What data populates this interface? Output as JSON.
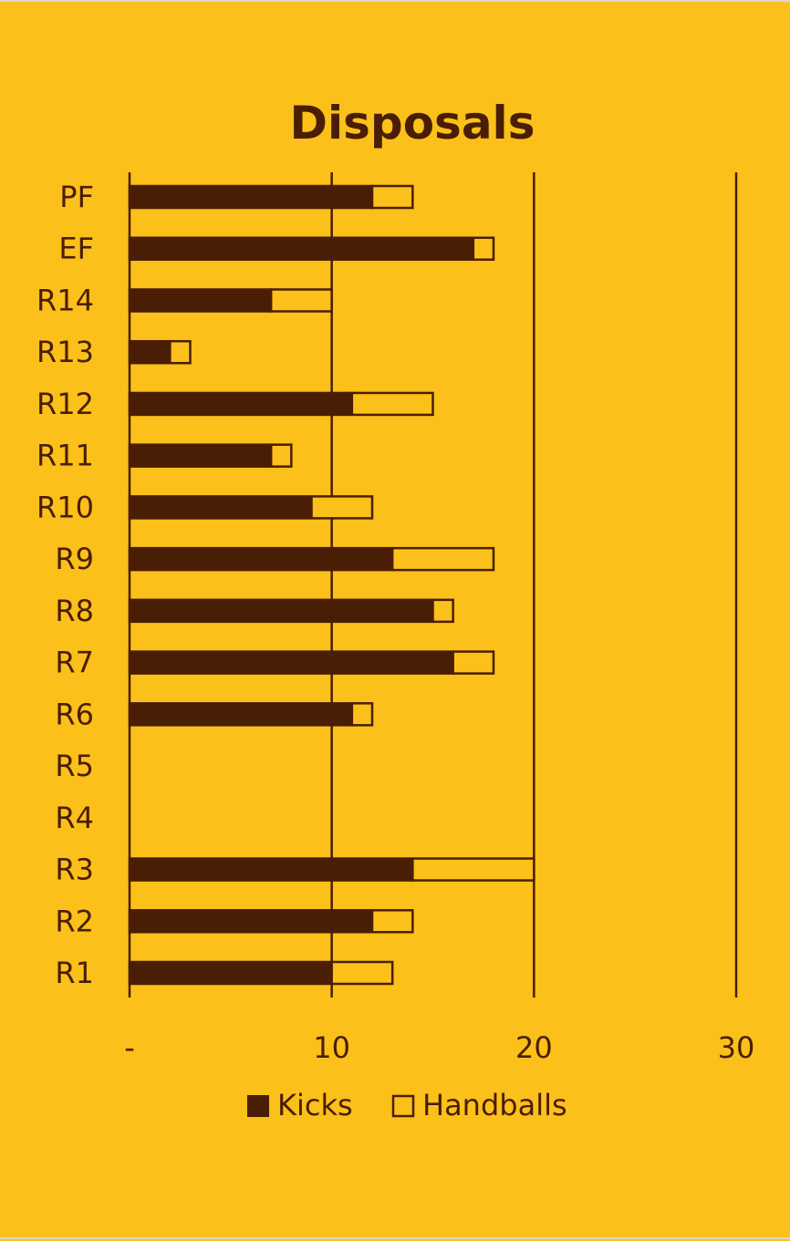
{
  "chart_data": {
    "type": "bar",
    "orientation": "horizontal",
    "stacked": true,
    "title": "Disposals",
    "xlabel": "",
    "ylabel": "",
    "xlim": [
      0,
      30
    ],
    "x_ticks": [
      0,
      10,
      20,
      30
    ],
    "x_tick_labels": [
      "-",
      "10",
      "20",
      "30"
    ],
    "grid": true,
    "legend_position": "bottom",
    "categories": [
      "PF",
      "EF",
      "R14",
      "R13",
      "R12",
      "R11",
      "R10",
      "R9",
      "R8",
      "R7",
      "R6",
      "R5",
      "R4",
      "R3",
      "R2",
      "R1"
    ],
    "series": [
      {
        "name": "Kicks",
        "color": "#4A1E04",
        "values": [
          12,
          17,
          7,
          2,
          11,
          7,
          9,
          13,
          15,
          16,
          11,
          null,
          null,
          14,
          12,
          10
        ]
      },
      {
        "name": "Handballs",
        "color": "#FBC01A",
        "values": [
          2,
          1,
          3,
          1,
          4,
          1,
          3,
          5,
          1,
          2,
          1,
          null,
          null,
          6,
          2,
          3
        ]
      }
    ]
  },
  "colors": {
    "background": "#FBC01A",
    "foreground": "#4A1E04"
  }
}
